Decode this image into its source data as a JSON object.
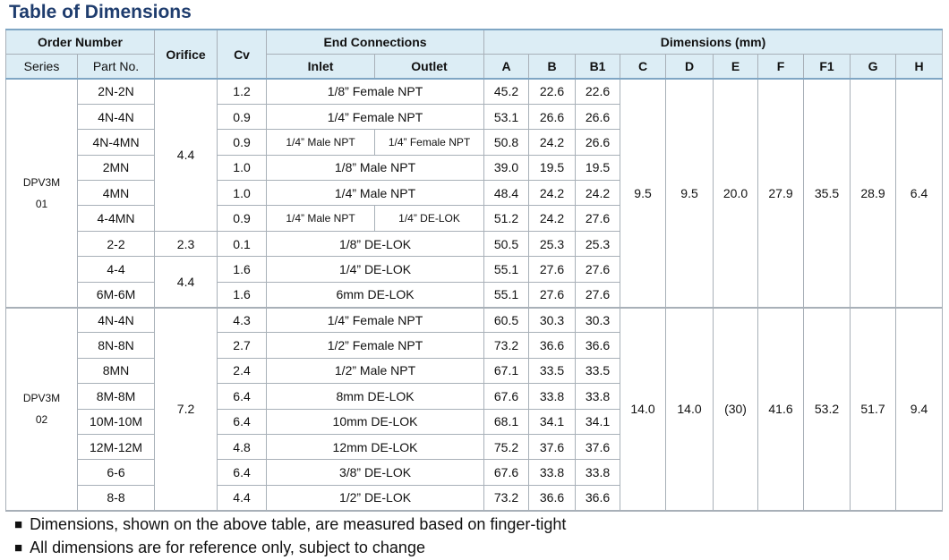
{
  "title": "Table of Dimensions",
  "header": {
    "order_number": "Order Number",
    "series": "Series",
    "part_no": "Part No.",
    "orifice": "Orifice",
    "cv": "Cv",
    "end_connections": "End Connections",
    "inlet": "Inlet",
    "outlet": "Outlet",
    "dimensions": "Dimensions (mm)",
    "dims": [
      "A",
      "B",
      "B1",
      "C",
      "D",
      "E",
      "F",
      "F1",
      "G",
      "H"
    ]
  },
  "groups": [
    {
      "series": [
        "DPV3M",
        "01"
      ],
      "common": [
        "9.5",
        "9.5",
        "20.0",
        "27.9",
        "35.5",
        "28.9",
        "6.4"
      ],
      "rows": [
        {
          "part": "2N-2N",
          "orifice": "4.4",
          "cv": "1.2",
          "end": "1/8” Female NPT",
          "dims": [
            "45.2",
            "22.6",
            "22.6"
          ]
        },
        {
          "part": "4N-4N",
          "cv": "0.9",
          "end": "1/4” Female NPT",
          "dims": [
            "53.1",
            "26.6",
            "26.6"
          ]
        },
        {
          "part": "4N-4MN",
          "cv": "0.9",
          "inlet": "1/4” Male NPT",
          "outlet": "1/4” Female NPT",
          "dims": [
            "50.8",
            "24.2",
            "26.6"
          ]
        },
        {
          "part": "2MN",
          "cv": "1.0",
          "end": "1/8” Male NPT",
          "dims": [
            "39.0",
            "19.5",
            "19.5"
          ]
        },
        {
          "part": "4MN",
          "cv": "1.0",
          "end": "1/4” Male NPT",
          "dims": [
            "48.4",
            "24.2",
            "24.2"
          ]
        },
        {
          "part": "4-4MN",
          "cv": "0.9",
          "inlet": "1/4” Male NPT",
          "outlet": "1/4” DE-LOK",
          "dims": [
            "51.2",
            "24.2",
            "27.6"
          ]
        },
        {
          "part": "2-2",
          "orifice": "2.3",
          "cv": "0.1",
          "end": "1/8” DE-LOK",
          "dims": [
            "50.5",
            "25.3",
            "25.3"
          ]
        },
        {
          "part": "4-4",
          "orifice": "4.4",
          "cv": "1.6",
          "end": "1/4” DE-LOK",
          "dims": [
            "55.1",
            "27.6",
            "27.6"
          ]
        },
        {
          "part": "6M-6M",
          "cv": "1.6",
          "end": "6mm DE-LOK",
          "dims": [
            "55.1",
            "27.6",
            "27.6"
          ]
        }
      ]
    },
    {
      "series": [
        "DPV3M",
        "02"
      ],
      "common": [
        "14.0",
        "14.0",
        "(30)",
        "41.6",
        "53.2",
        "51.7",
        "9.4"
      ],
      "rows": [
        {
          "part": "4N-4N",
          "orifice": "7.2",
          "cv": "4.3",
          "end": "1/4” Female NPT",
          "dims": [
            "60.5",
            "30.3",
            "30.3"
          ]
        },
        {
          "part": "8N-8N",
          "cv": "2.7",
          "end": "1/2” Female NPT",
          "dims": [
            "73.2",
            "36.6",
            "36.6"
          ]
        },
        {
          "part": "8MN",
          "cv": "2.4",
          "end": "1/2” Male NPT",
          "dims": [
            "67.1",
            "33.5",
            "33.5"
          ]
        },
        {
          "part": "8M-8M",
          "cv": "6.4",
          "end": "8mm DE-LOK",
          "dims": [
            "67.6",
            "33.8",
            "33.8"
          ]
        },
        {
          "part": "10M-10M",
          "cv": "6.4",
          "end": "10mm DE-LOK",
          "dims": [
            "68.1",
            "34.1",
            "34.1"
          ]
        },
        {
          "part": "12M-12M",
          "cv": "4.8",
          "end": "12mm DE-LOK",
          "dims": [
            "75.2",
            "37.6",
            "37.6"
          ]
        },
        {
          "part": "6-6",
          "cv": "6.4",
          "end": "3/8” DE-LOK",
          "dims": [
            "67.6",
            "33.8",
            "33.8"
          ]
        },
        {
          "part": "8-8",
          "cv": "4.4",
          "end": "1/2” DE-LOK",
          "dims": [
            "73.2",
            "36.6",
            "36.6"
          ]
        }
      ]
    }
  ],
  "notes": [
    "Dimensions, shown on the above table, are measured based on finger-tight",
    "All dimensions are for reference only, subject to change"
  ]
}
